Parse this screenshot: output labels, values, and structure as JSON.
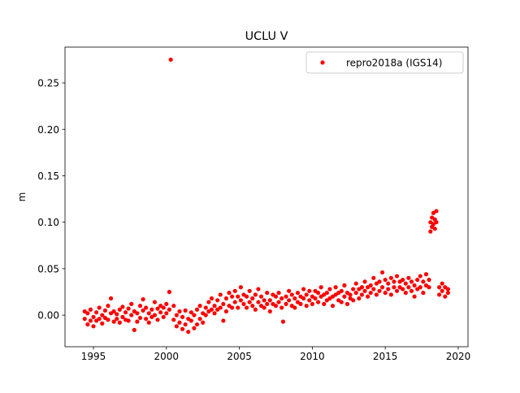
{
  "chart_data": {
    "type": "scatter",
    "title": "UCLU V",
    "y_label": "m",
    "xlim": [
      1993.05,
      2020.67
    ],
    "ylim": [
      -0.034,
      0.2885
    ],
    "xticks": [
      1995,
      2000,
      2005,
      2010,
      2015,
      2020
    ],
    "yticks": [
      {
        "value": 0,
        "label": "0.00"
      },
      {
        "value": 0.05,
        "label": "0.05"
      },
      {
        "value": 0.1,
        "label": "0.10"
      },
      {
        "value": 0.15,
        "label": "0.15"
      },
      {
        "value": 0.2,
        "label": "0.20"
      },
      {
        "value": 0.25,
        "label": "0.25"
      }
    ],
    "grid": false,
    "legend": "upper right",
    "series": [
      {
        "name": "repro2018a (IGS14)",
        "color": "#ff0000",
        "x": [
          1994.4,
          1994.4,
          1994.6,
          1994.6,
          1994.8,
          1994.8,
          1995.0,
          1995.0,
          1995.2,
          1995.2,
          1995.4,
          1995.4,
          1995.6,
          1995.6,
          1995.8,
          1995.8,
          1996.0,
          1996.0,
          1996.2,
          1996.2,
          1996.4,
          1996.4,
          1996.6,
          1996.6,
          1996.8,
          1996.8,
          1997.0,
          1997.0,
          1997.2,
          1997.2,
          1997.4,
          1997.4,
          1997.6,
          1997.6,
          1997.8,
          1997.8,
          1998.0,
          1998.0,
          1998.2,
          1998.2,
          1998.4,
          1998.4,
          1998.6,
          1998.6,
          1998.8,
          1998.8,
          1999.0,
          1999.0,
          1999.2,
          1999.2,
          1999.4,
          1999.4,
          1999.6,
          1999.6,
          1999.8,
          1999.8,
          2000.0,
          2000.0,
          2000.2,
          2000.2,
          2000.3,
          2000.5,
          2000.5,
          2000.7,
          2000.7,
          2000.9,
          2000.9,
          2001.1,
          2001.1,
          2001.3,
          2001.3,
          2001.5,
          2001.5,
          2001.7,
          2001.7,
          2001.9,
          2001.9,
          2002.1,
          2002.1,
          2002.3,
          2002.3,
          2002.5,
          2002.5,
          2002.7,
          2002.7,
          2002.9,
          2002.9,
          2003.1,
          2003.1,
          2003.3,
          2003.3,
          2003.5,
          2003.5,
          2003.7,
          2003.7,
          2003.9,
          2003.9,
          2004.1,
          2004.1,
          2004.3,
          2004.3,
          2004.5,
          2004.5,
          2004.7,
          2004.7,
          2004.9,
          2004.9,
          2005.1,
          2005.1,
          2005.3,
          2005.3,
          2005.5,
          2005.5,
          2005.7,
          2005.7,
          2005.9,
          2005.9,
          2006.1,
          2006.1,
          2006.3,
          2006.3,
          2006.5,
          2006.5,
          2006.7,
          2006.7,
          2006.9,
          2006.9,
          2007.1,
          2007.1,
          2007.3,
          2007.3,
          2007.5,
          2007.5,
          2007.7,
          2007.7,
          2007.9,
          2007.9,
          2008.0,
          2008.2,
          2008.2,
          2008.4,
          2008.4,
          2008.6,
          2008.6,
          2008.8,
          2008.8,
          2009.0,
          2009.0,
          2009.2,
          2009.2,
          2009.4,
          2009.4,
          2009.6,
          2009.6,
          2009.8,
          2009.8,
          2010.0,
          2010.0,
          2010.2,
          2010.2,
          2010.4,
          2010.4,
          2010.6,
          2010.6,
          2010.8,
          2010.8,
          2011.0,
          2011.0,
          2011.2,
          2011.2,
          2011.4,
          2011.4,
          2011.6,
          2011.6,
          2011.8,
          2011.8,
          2012.0,
          2012.0,
          2012.2,
          2012.2,
          2012.4,
          2012.4,
          2012.6,
          2012.6,
          2012.8,
          2012.8,
          2013.0,
          2013.0,
          2013.2,
          2013.2,
          2013.4,
          2013.4,
          2013.6,
          2013.6,
          2013.8,
          2013.8,
          2014.0,
          2014.0,
          2014.2,
          2014.2,
          2014.4,
          2014.4,
          2014.6,
          2014.6,
          2014.8,
          2014.8,
          2015.0,
          2015.0,
          2015.2,
          2015.2,
          2015.4,
          2015.4,
          2015.6,
          2015.6,
          2015.8,
          2015.8,
          2016.0,
          2016.0,
          2016.2,
          2016.2,
          2016.4,
          2016.4,
          2016.6,
          2016.6,
          2016.8,
          2016.8,
          2017.0,
          2017.0,
          2017.2,
          2017.2,
          2017.4,
          2017.4,
          2017.6,
          2017.6,
          2017.8,
          2017.8,
          2018.0,
          2018.0,
          2018.1,
          2018.1,
          2018.2,
          2018.2,
          2018.3,
          2018.3,
          2018.4,
          2018.4,
          2018.5,
          2018.5,
          2018.7,
          2018.7,
          2018.9,
          2018.9,
          2019.1,
          2019.1,
          2019.3,
          2019.3
        ],
        "values": [
          -0.004,
          0.004,
          -0.01,
          0.002,
          -0.006,
          0.006,
          -0.002,
          -0.012,
          0.003,
          -0.006,
          -0.004,
          0.008,
          0.0,
          -0.009,
          0.005,
          -0.003,
          -0.005,
          0.01,
          0.018,
          0.002,
          -0.007,
          0.004,
          0.001,
          -0.004,
          0.006,
          -0.008,
          -0.002,
          0.009,
          0.003,
          -0.005,
          -0.006,
          0.007,
          0.0,
          0.012,
          -0.016,
          0.004,
          0.002,
          -0.007,
          0.01,
          -0.003,
          0.005,
          0.017,
          -0.004,
          0.008,
          0.002,
          -0.008,
          0.006,
          -0.002,
          0.014,
          0.0,
          -0.005,
          0.007,
          0.003,
          0.01,
          0.008,
          -0.002,
          0.012,
          0.002,
          0.025,
          0.006,
          0.275,
          -0.005,
          0.01,
          -0.012,
          0.0,
          -0.008,
          0.004,
          -0.015,
          -0.002,
          -0.01,
          0.005,
          -0.018,
          -0.004,
          -0.006,
          0.003,
          -0.014,
          0.0,
          -0.01,
          0.006,
          -0.004,
          0.01,
          0.002,
          -0.008,
          0.008,
          0.0,
          0.014,
          0.004,
          0.006,
          0.018,
          0.01,
          0.002,
          0.016,
          0.006,
          0.022,
          0.008,
          0.012,
          -0.006,
          0.018,
          0.004,
          0.01,
          0.024,
          0.02,
          0.008,
          0.014,
          0.026,
          0.008,
          0.02,
          0.016,
          0.03,
          0.012,
          0.022,
          0.02,
          0.008,
          0.026,
          0.014,
          0.01,
          0.018,
          0.022,
          0.006,
          0.014,
          0.028,
          0.02,
          0.01,
          0.008,
          0.016,
          0.024,
          0.012,
          0.016,
          0.004,
          0.012,
          0.022,
          0.02,
          0.01,
          0.014,
          0.024,
          0.008,
          0.018,
          -0.007,
          0.02,
          0.012,
          0.016,
          0.026,
          0.01,
          0.022,
          0.018,
          0.008,
          0.024,
          0.014,
          0.012,
          0.02,
          0.018,
          0.028,
          0.022,
          0.01,
          0.016,
          0.026,
          0.02,
          0.012,
          0.026,
          0.018,
          0.014,
          0.024,
          0.02,
          0.03,
          0.012,
          0.022,
          0.024,
          0.016,
          0.018,
          0.028,
          0.01,
          0.02,
          0.022,
          0.03,
          0.016,
          0.024,
          0.026,
          0.014,
          0.02,
          0.032,
          0.012,
          0.024,
          0.022,
          0.018,
          0.028,
          0.016,
          0.024,
          0.034,
          0.018,
          0.028,
          0.03,
          0.022,
          0.026,
          0.036,
          0.02,
          0.03,
          0.032,
          0.024,
          0.028,
          0.04,
          0.022,
          0.034,
          0.036,
          0.026,
          0.03,
          0.046,
          0.024,
          0.038,
          0.034,
          0.028,
          0.04,
          0.022,
          0.03,
          0.036,
          0.026,
          0.042,
          0.036,
          0.03,
          0.028,
          0.038,
          0.034,
          0.024,
          0.04,
          0.03,
          0.026,
          0.036,
          0.032,
          0.02,
          0.038,
          0.028,
          0.03,
          0.042,
          0.036,
          0.024,
          0.044,
          0.032,
          0.03,
          0.038,
          0.09,
          0.1,
          0.095,
          0.105,
          0.098,
          0.11,
          0.093,
          0.103,
          0.1,
          0.112,
          0.03,
          0.022,
          0.026,
          0.034,
          0.02,
          0.03,
          0.028,
          0.024
        ]
      }
    ]
  }
}
